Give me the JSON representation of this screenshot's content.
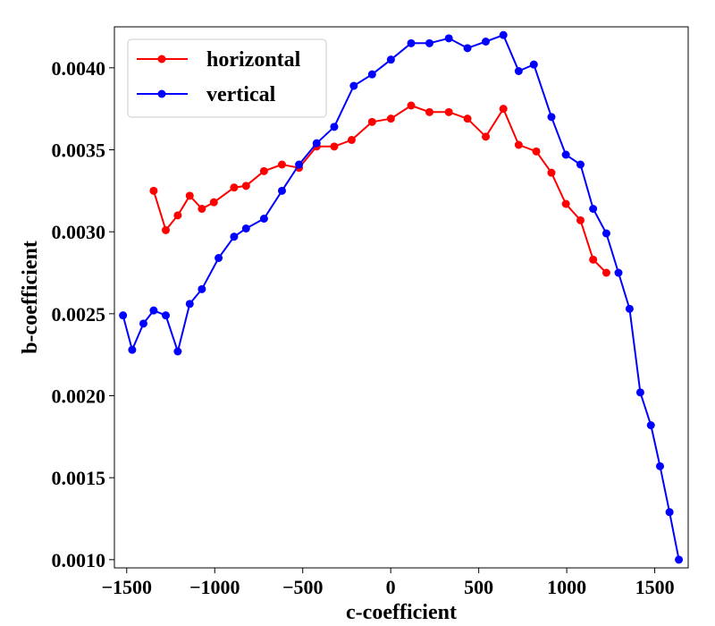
{
  "chart_data": {
    "type": "line",
    "xlabel": "c-coefficient",
    "ylabel": "b-coefficient",
    "xlim": [
      -1570,
      1690
    ],
    "ylim": [
      0.00095,
      0.00425
    ],
    "x_ticks": [
      -1500,
      -1000,
      -500,
      0,
      500,
      1000,
      1500
    ],
    "x_tick_labels": [
      "−1500",
      "−1000",
      "−500",
      "0",
      "500",
      "1000",
      "1500"
    ],
    "y_ticks": [
      0.001,
      0.0015,
      0.002,
      0.0025,
      0.003,
      0.0035,
      0.004
    ],
    "y_tick_labels": [
      "0.0010",
      "0.0015",
      "0.0020",
      "0.0025",
      "0.0030",
      "0.0035",
      "0.0040"
    ],
    "grid": false,
    "legend_position": "top-left",
    "series": [
      {
        "name": "horizontal",
        "color": "#ff0000",
        "marker": "circle",
        "x": [
          -1347,
          -1278,
          -1210,
          -1142,
          -1073,
          -1005,
          -890,
          -822,
          -720,
          -618,
          -521,
          -421,
          -321,
          -222,
          -106,
          1,
          116,
          220,
          330,
          436,
          540,
          640,
          727,
          827,
          913,
          995,
          1078,
          1150,
          1225
        ],
        "y": [
          0.00325,
          0.00301,
          0.0031,
          0.00322,
          0.00314,
          0.00318,
          0.00327,
          0.00328,
          0.00337,
          0.00341,
          0.00339,
          0.00352,
          0.00352,
          0.00356,
          0.00367,
          0.00369,
          0.00377,
          0.00373,
          0.00373,
          0.00369,
          0.00358,
          0.00375,
          0.00353,
          0.00349,
          0.00336,
          0.00317,
          0.00307,
          0.00283,
          0.00275
        ]
      },
      {
        "name": "vertical",
        "color": "#0000ff",
        "marker": "circle",
        "x": [
          -1521,
          -1469,
          -1405,
          -1347,
          -1278,
          -1210,
          -1142,
          -1073,
          -978,
          -890,
          -822,
          -720,
          -618,
          -521,
          -421,
          -321,
          -210,
          -106,
          1,
          116,
          220,
          330,
          436,
          540,
          640,
          727,
          813,
          913,
          995,
          1078,
          1150,
          1225,
          1294,
          1357,
          1418,
          1478,
          1530,
          1584,
          1637
        ],
        "y": [
          0.00249,
          0.00228,
          0.00244,
          0.00252,
          0.00249,
          0.00227,
          0.00256,
          0.00265,
          0.00284,
          0.00297,
          0.00302,
          0.00308,
          0.00325,
          0.00341,
          0.00354,
          0.00364,
          0.00389,
          0.00396,
          0.00405,
          0.00415,
          0.00415,
          0.00418,
          0.00412,
          0.00416,
          0.0042,
          0.00398,
          0.00402,
          0.0037,
          0.00347,
          0.00341,
          0.00314,
          0.00299,
          0.00275,
          0.00253,
          0.00202,
          0.00182,
          0.00157,
          0.00129,
          0.001
        ]
      }
    ]
  }
}
